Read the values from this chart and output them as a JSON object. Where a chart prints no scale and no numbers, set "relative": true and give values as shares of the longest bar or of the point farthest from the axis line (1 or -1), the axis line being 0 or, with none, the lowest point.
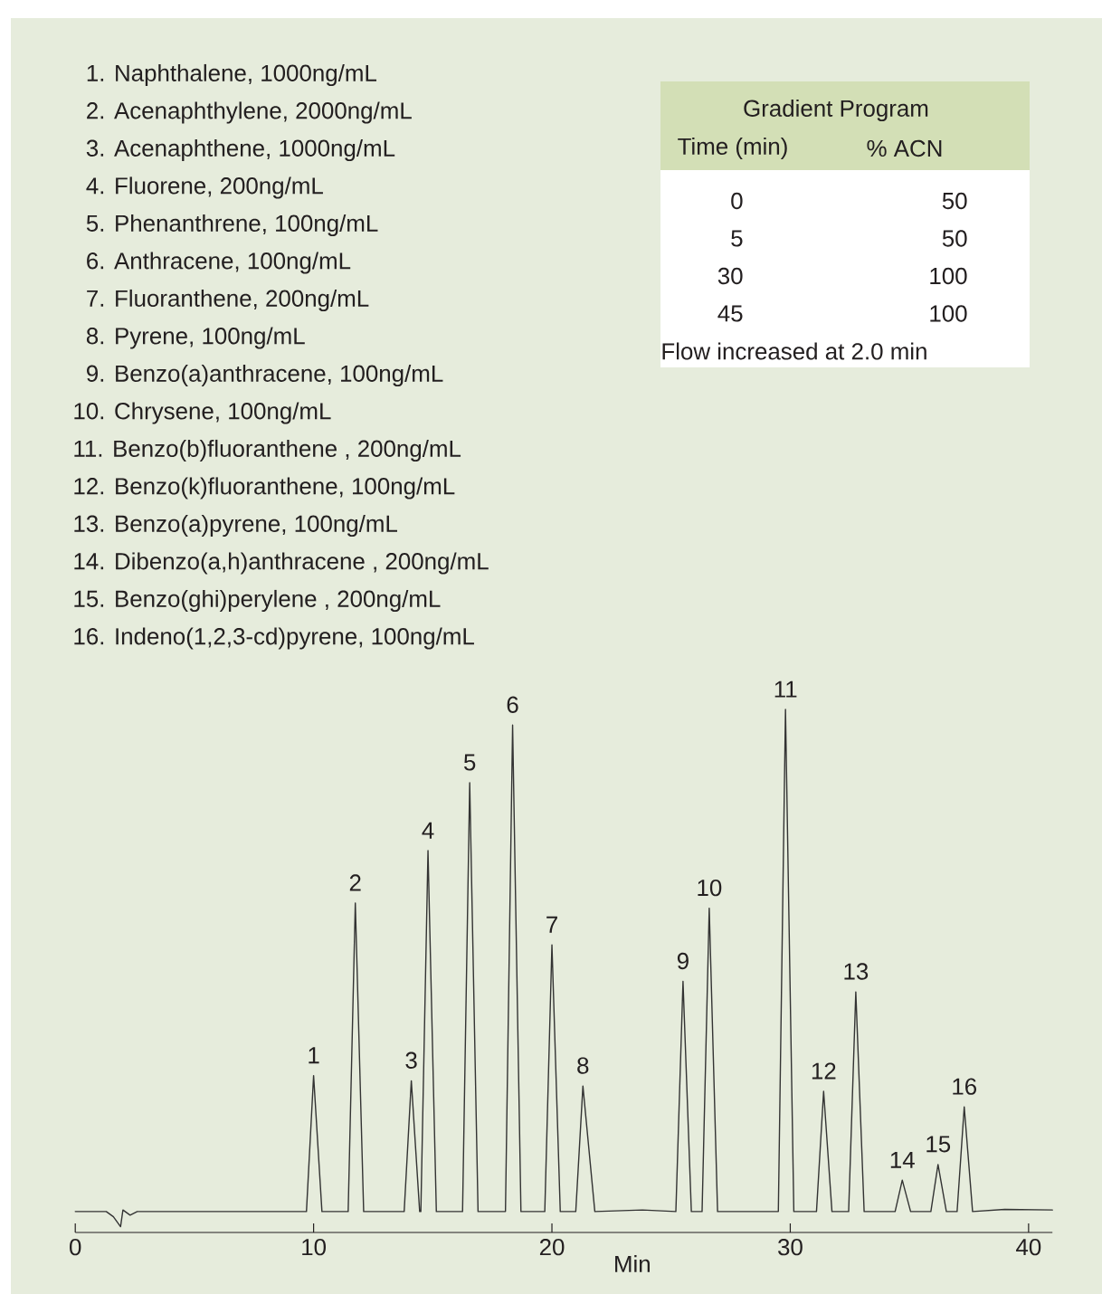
{
  "chart_data": {
    "type": "line",
    "relative": true,
    "xlabel": "Min",
    "xlim": [
      0,
      41
    ],
    "xticks": [
      0,
      10,
      20,
      30,
      40
    ],
    "series": [
      {
        "color": "#333333",
        "x": [
          0,
          1.3,
          1.6,
          1.9,
          2.0,
          2.3,
          2.6,
          9.7,
          10.0,
          10.35,
          11.45,
          11.75,
          12.1,
          13.8,
          14.1,
          14.45,
          14.5,
          14.8,
          15.15,
          16.25,
          16.55,
          16.9,
          18.05,
          18.35,
          18.7,
          19.7,
          20.0,
          20.35,
          21.0,
          21.3,
          21.8,
          23.8,
          25.2,
          25.5,
          25.85,
          26.3,
          26.6,
          26.95,
          29.5,
          29.8,
          30.15,
          31.1,
          31.4,
          31.75,
          32.45,
          32.75,
          33.1,
          34.4,
          34.7,
          35.05,
          35.9,
          36.2,
          36.55,
          37.0,
          37.3,
          37.65,
          39.0,
          41.0
        ],
        "values": [
          0.04,
          0.04,
          0.03,
          0.011,
          0.043,
          0.033,
          0.04,
          0.04,
          0.3,
          0.04,
          0.04,
          0.63,
          0.04,
          0.04,
          0.29,
          0.04,
          0.04,
          0.73,
          0.04,
          0.04,
          0.86,
          0.04,
          0.04,
          0.97,
          0.04,
          0.04,
          0.55,
          0.04,
          0.04,
          0.28,
          0.04,
          0.043,
          0.04,
          0.48,
          0.04,
          0.04,
          0.62,
          0.04,
          0.04,
          1.0,
          0.04,
          0.04,
          0.27,
          0.04,
          0.04,
          0.46,
          0.04,
          0.04,
          0.1,
          0.04,
          0.04,
          0.13,
          0.04,
          0.04,
          0.24,
          0.04,
          0.044,
          0.043
        ]
      }
    ],
    "annotations": [
      "1. Naphthalene, 1000ng/mL",
      "2. Acenaphthylene, 2000ng/mL",
      "3. Acenaphthene, 1000ng/mL",
      "4. Fluorene, 200ng/mL",
      "5. Phenanthrene, 100ng/mL",
      "6. Anthracene, 100ng/mL",
      "7. Fluoranthene, 200ng/mL",
      "8. Pyrene, 100ng/mL",
      "9. Benzo(a)anthracene, 100ng/mL",
      "10. Chrysene, 100ng/mL",
      "11. Benzo(b)fluoranthene , 200ng/mL",
      "12. Benzo(k)fluoranthene, 100ng/mL",
      "13. Benzo(a)pyrene, 100ng/mL",
      "14. Dibenzo(a,h)anthracene , 200ng/mL",
      "15. Benzo(ghi)perylene , 200ng/mL",
      "16. Indeno(1,2,3-cd)pyrene, 100ng/mL",
      "Gradient Program",
      "Time (min)",
      "% ACN",
      "0",
      "50",
      "5",
      "50",
      "30",
      "100",
      "45",
      "100",
      "Flow increased at 2.0 min",
      {
        "text": "1",
        "x": 10.0,
        "y": 0.3
      },
      {
        "text": "2",
        "x": 11.75,
        "y": 0.63
      },
      {
        "text": "3",
        "x": 14.1,
        "y": 0.29
      },
      {
        "text": "4",
        "x": 14.8,
        "y": 0.73
      },
      {
        "text": "5",
        "x": 16.55,
        "y": 0.86
      },
      {
        "text": "6",
        "x": 18.35,
        "y": 0.97
      },
      {
        "text": "7",
        "x": 20.0,
        "y": 0.55
      },
      {
        "text": "8",
        "x": 21.3,
        "y": 0.28
      },
      {
        "text": "9",
        "x": 25.5,
        "y": 0.48
      },
      {
        "text": "10",
        "x": 26.6,
        "y": 0.62
      },
      {
        "text": "11",
        "x": 29.8,
        "y": 1.0
      },
      {
        "text": "12",
        "x": 31.4,
        "y": 0.27
      },
      {
        "text": "13",
        "x": 32.75,
        "y": 0.46
      },
      {
        "text": "14",
        "x": 34.7,
        "y": 0.1
      },
      {
        "text": "15",
        "x": 36.2,
        "y": 0.13
      },
      {
        "text": "16",
        "x": 37.3,
        "y": 0.24
      }
    ]
  }
}
